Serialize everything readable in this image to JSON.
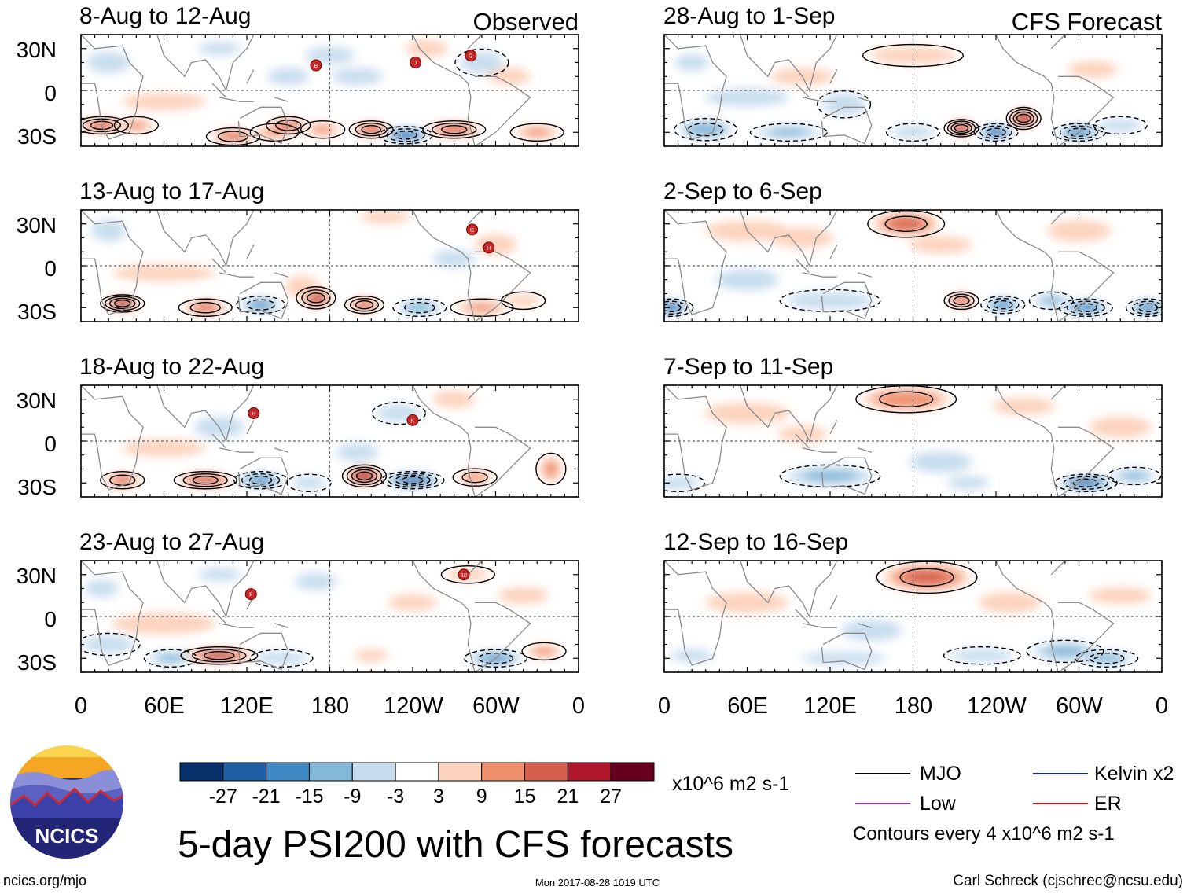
{
  "chart_data": {
    "type": "heatmap",
    "title": "5-day PSI200 with CFS forecasts",
    "panel_columns": [
      {
        "header": "Observed",
        "panels": [
          "8-Aug to 12-Aug",
          "13-Aug to 17-Aug",
          "18-Aug to 22-Aug",
          "23-Aug to 27-Aug"
        ]
      },
      {
        "header": "CFS Forecast",
        "panels": [
          "28-Aug to 1-Sep",
          "2-Sep to 6-Sep",
          "7-Sep to 11-Sep",
          "12-Sep to 16-Sep"
        ]
      }
    ],
    "y_ticks": [
      "30N",
      "0",
      "30S"
    ],
    "x_ticks": [
      "0",
      "60E",
      "120E",
      "180",
      "120W",
      "60W",
      "0"
    ],
    "colorbar": {
      "levels": [
        -27,
        -21,
        -15,
        -9,
        -3,
        3,
        9,
        15,
        21,
        27
      ],
      "colors": [
        "#08306b",
        "#1f5fa6",
        "#3f8ac4",
        "#83b8d9",
        "#c7ddee",
        "#ffffff",
        "#fcd3bd",
        "#f0906d",
        "#d6604d",
        "#b2182b",
        "#67001f"
      ],
      "units": "x10^6 m2 s-1"
    },
    "legend": [
      {
        "label": "MJO",
        "color": "#000000"
      },
      {
        "label": "Kelvin x2",
        "color": "#1122cc"
      },
      {
        "label": "Low",
        "color": "#9933cc"
      },
      {
        "label": "ER",
        "color": "#dd1111"
      }
    ],
    "contour_note": "Contours every 4 x10^6 m2 s-1",
    "storms": [
      {
        "panel": 0,
        "letter": "B",
        "lon": 170,
        "lat": 18
      },
      {
        "panel": 0,
        "letter": "J",
        "lon": 242,
        "lat": 20
      },
      {
        "panel": 0,
        "letter": "G",
        "lon": 282,
        "lat": 25
      },
      {
        "panel": 1,
        "letter": "G",
        "lon": 283,
        "lat": 26
      },
      {
        "panel": 1,
        "letter": "H",
        "lon": 295,
        "lat": 13
      },
      {
        "panel": 2,
        "letter": "H",
        "lon": 125,
        "lat": 20
      },
      {
        "panel": 2,
        "letter": "K",
        "lon": 240,
        "lat": 15
      },
      {
        "panel": 3,
        "letter": "F",
        "lon": 123,
        "lat": 16
      },
      {
        "panel": 3,
        "letter": "10",
        "lon": 277,
        "lat": 30
      }
    ],
    "blobs": [
      [
        [
          15,
          -25,
          10,
          3,
          18
        ],
        [
          40,
          -25,
          8,
          3,
          10
        ],
        [
          110,
          -33,
          10,
          3,
          15
        ],
        [
          140,
          -30,
          9,
          3,
          10
        ],
        [
          150,
          -25,
          8,
          3,
          16
        ],
        [
          175,
          -28,
          8,
          3,
          10
        ],
        [
          210,
          -28,
          8,
          3,
          20
        ],
        [
          235,
          -32,
          10,
          3,
          -22
        ],
        [
          270,
          -28,
          12,
          3,
          18
        ],
        [
          330,
          -30,
          10,
          3,
          10
        ],
        [
          60,
          -8,
          20,
          4,
          5
        ],
        [
          20,
          20,
          10,
          5,
          -6
        ],
        [
          100,
          30,
          10,
          3,
          -6
        ],
        [
          180,
          25,
          12,
          4,
          -4
        ],
        [
          290,
          20,
          10,
          5,
          -8
        ],
        [
          250,
          30,
          10,
          4,
          6
        ],
        [
          200,
          10,
          12,
          4,
          -5
        ],
        [
          150,
          10,
          10,
          4,
          -4
        ],
        [
          310,
          10,
          10,
          4,
          4
        ]
      ],
      [
        [
          30,
          -27,
          8,
          3,
          24
        ],
        [
          90,
          -30,
          10,
          3,
          16
        ],
        [
          130,
          -28,
          9,
          3,
          -16
        ],
        [
          170,
          -23,
          7,
          4,
          22
        ],
        [
          205,
          -28,
          7,
          3,
          18
        ],
        [
          245,
          -30,
          10,
          3,
          -14
        ],
        [
          290,
          -30,
          12,
          3,
          10
        ],
        [
          320,
          -25,
          8,
          3,
          8
        ],
        [
          60,
          -5,
          25,
          4,
          4
        ],
        [
          300,
          15,
          10,
          5,
          4
        ],
        [
          220,
          35,
          12,
          3,
          6
        ],
        [
          20,
          25,
          8,
          5,
          -5
        ],
        [
          160,
          -15,
          8,
          5,
          5
        ],
        [
          270,
          5,
          10,
          4,
          -5
        ]
      ],
      [
        [
          30,
          -28,
          8,
          3,
          16
        ],
        [
          90,
          -28,
          12,
          3,
          20
        ],
        [
          130,
          -28,
          10,
          3,
          -18
        ],
        [
          165,
          -30,
          8,
          3,
          -8
        ],
        [
          205,
          -25,
          8,
          4,
          24
        ],
        [
          240,
          -28,
          12,
          3,
          -24
        ],
        [
          285,
          -26,
          8,
          3,
          12
        ],
        [
          340,
          -20,
          5,
          6,
          10
        ],
        [
          60,
          -5,
          20,
          4,
          4
        ],
        [
          100,
          10,
          12,
          5,
          -4
        ],
        [
          230,
          20,
          10,
          4,
          -8
        ],
        [
          270,
          30,
          10,
          4,
          6
        ],
        [
          200,
          -8,
          10,
          4,
          -6
        ]
      ],
      [
        [
          20,
          -20,
          12,
          4,
          -8
        ],
        [
          65,
          -30,
          10,
          3,
          -10
        ],
        [
          100,
          -28,
          15,
          3,
          22
        ],
        [
          145,
          -30,
          12,
          3,
          -8
        ],
        [
          210,
          -28,
          8,
          3,
          6
        ],
        [
          300,
          -30,
          12,
          3,
          -16
        ],
        [
          335,
          -25,
          8,
          3,
          10
        ],
        [
          60,
          -5,
          25,
          5,
          4
        ],
        [
          170,
          25,
          10,
          4,
          -5
        ],
        [
          280,
          30,
          10,
          3,
          8
        ],
        [
          100,
          30,
          10,
          3,
          -6
        ],
        [
          320,
          15,
          12,
          4,
          4
        ],
        [
          15,
          20,
          8,
          4,
          -5
        ],
        [
          240,
          10,
          12,
          4,
          3
        ]
      ],
      [
        [
          30,
          -28,
          12,
          4,
          -14
        ],
        [
          90,
          -30,
          15,
          3,
          -10
        ],
        [
          180,
          -30,
          10,
          3,
          -8
        ],
        [
          215,
          -27,
          6,
          3,
          26
        ],
        [
          240,
          -30,
          8,
          3,
          -22
        ],
        [
          260,
          -20,
          6,
          4,
          24
        ],
        [
          300,
          -30,
          10,
          3,
          -18
        ],
        [
          330,
          -25,
          10,
          3,
          -8
        ],
        [
          100,
          10,
          15,
          4,
          6
        ],
        [
          180,
          25,
          20,
          4,
          8
        ],
        [
          60,
          -5,
          20,
          4,
          -5
        ],
        [
          130,
          -10,
          10,
          5,
          -8
        ],
        [
          310,
          15,
          12,
          4,
          4
        ],
        [
          20,
          20,
          8,
          4,
          -4
        ]
      ],
      [
        [
          5,
          -30,
          8,
          3,
          -22
        ],
        [
          120,
          -25,
          20,
          4,
          -8
        ],
        [
          175,
          30,
          15,
          5,
          16
        ],
        [
          215,
          -25,
          6,
          3,
          18
        ],
        [
          245,
          -28,
          8,
          3,
          -18
        ],
        [
          280,
          -25,
          8,
          3,
          -10
        ],
        [
          305,
          -30,
          10,
          3,
          -20
        ],
        [
          350,
          -30,
          8,
          3,
          -20
        ],
        [
          60,
          -10,
          15,
          5,
          -5
        ],
        [
          300,
          25,
          15,
          5,
          6
        ],
        [
          60,
          25,
          20,
          5,
          4
        ],
        [
          200,
          15,
          15,
          4,
          5
        ],
        [
          100,
          20,
          15,
          5,
          4
        ]
      ],
      [
        [
          10,
          -30,
          10,
          3,
          -8
        ],
        [
          120,
          -25,
          20,
          4,
          -10
        ],
        [
          175,
          30,
          20,
          5,
          14
        ],
        [
          220,
          -30,
          10,
          3,
          -6
        ],
        [
          305,
          -30,
          12,
          3,
          -22
        ],
        [
          340,
          -25,
          10,
          3,
          -10
        ],
        [
          60,
          20,
          20,
          5,
          6
        ],
        [
          100,
          5,
          12,
          4,
          4
        ],
        [
          200,
          -15,
          15,
          5,
          -4
        ],
        [
          330,
          10,
          15,
          5,
          4
        ],
        [
          260,
          25,
          15,
          4,
          5
        ]
      ],
      [
        [
          190,
          28,
          20,
          6,
          16
        ],
        [
          130,
          -30,
          20,
          3,
          -6
        ],
        [
          230,
          -28,
          15,
          3,
          -8
        ],
        [
          290,
          -25,
          15,
          4,
          -10
        ],
        [
          320,
          -30,
          12,
          3,
          -12
        ],
        [
          250,
          10,
          15,
          5,
          4
        ],
        [
          60,
          10,
          20,
          5,
          4
        ],
        [
          330,
          15,
          15,
          4,
          4
        ],
        [
          20,
          -28,
          10,
          3,
          -5
        ],
        [
          150,
          -10,
          15,
          5,
          -3
        ]
      ]
    ]
  },
  "footer": {
    "logo_text": "NCICS",
    "url": "ncics.org/mjo",
    "timestamp": "Mon 2017-08-28 1019 UTC",
    "author": "Carl Schreck (cjschrec@ncsu.edu)"
  }
}
